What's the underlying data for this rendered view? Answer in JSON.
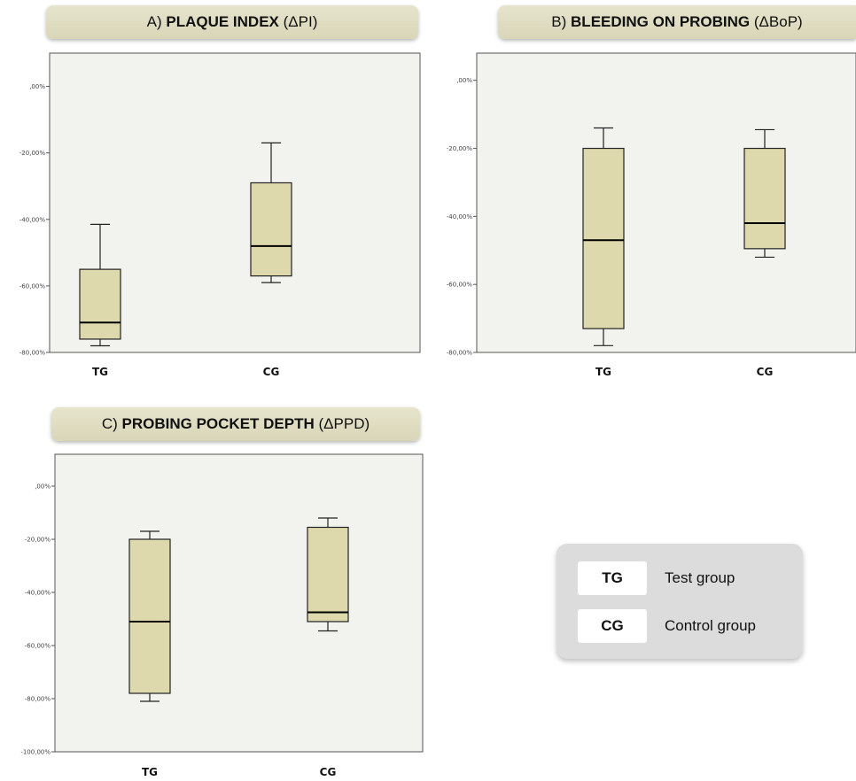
{
  "panels": [
    {
      "prefix": "A) ",
      "bold": "PLAQUE INDEX",
      "suffix": " (ΔPI)"
    },
    {
      "prefix": "B) ",
      "bold": "BLEEDING ON PROBING",
      "suffix": " (ΔBoP)"
    },
    {
      "prefix": "C) ",
      "bold": "PROBING POCKET DEPTH",
      "suffix": " (ΔPPD)"
    }
  ],
  "legend": [
    {
      "code": "TG",
      "label": "Test group"
    },
    {
      "code": "CG",
      "label": "Control group"
    }
  ],
  "colors": {
    "box_fill": "#ded9ad",
    "plot_bg": "#f2f2ee",
    "line": "#222222"
  },
  "chart_data": [
    {
      "type": "box",
      "title": "A) PLAQUE INDEX (ΔPI)",
      "categories": [
        "TG",
        "CG"
      ],
      "ylim": [
        -80,
        10
      ],
      "yticks": [
        0,
        -20,
        -40,
        -60,
        -80
      ],
      "ytick_labels": [
        ",00%",
        "-20,00%",
        "-40,00%",
        "-60,00%",
        "-80,00%"
      ],
      "boxes": [
        {
          "name": "TG",
          "whisker_low": -78,
          "q1": -76,
          "median": -71,
          "q3": -55,
          "whisker_high": -41.5
        },
        {
          "name": "CG",
          "whisker_low": -59,
          "q1": -57,
          "median": -48,
          "q3": -29,
          "whisker_high": -17
        }
      ]
    },
    {
      "type": "box",
      "title": "B) BLEEDING ON PROBING (ΔBoP)",
      "categories": [
        "TG",
        "CG"
      ],
      "ylim": [
        -80,
        8
      ],
      "yticks": [
        0,
        -20,
        -40,
        -60,
        -80
      ],
      "ytick_labels": [
        ",00%",
        "-20,00%",
        "-40,00%",
        "-60,00%",
        "-80,00%"
      ],
      "boxes": [
        {
          "name": "TG",
          "whisker_low": -78,
          "q1": -73,
          "median": -47,
          "q3": -20,
          "whisker_high": -14
        },
        {
          "name": "CG",
          "whisker_low": -52,
          "q1": -49.5,
          "median": -42,
          "q3": -20,
          "whisker_high": -14.5
        }
      ]
    },
    {
      "type": "box",
      "title": "C) PROBING POCKET DEPTH (ΔPPD)",
      "categories": [
        "TG",
        "CG"
      ],
      "ylim": [
        -100,
        12
      ],
      "yticks": [
        0,
        -20,
        -40,
        -60,
        -80,
        -100
      ],
      "ytick_labels": [
        ",00%",
        "-20,00%",
        "-40,00%",
        "-60,00%",
        "-80,00%",
        "-100,00%"
      ],
      "boxes": [
        {
          "name": "TG",
          "whisker_low": -81,
          "q1": -78,
          "median": -51,
          "q3": -20,
          "whisker_high": -17
        },
        {
          "name": "CG",
          "whisker_low": -54.5,
          "q1": -51,
          "median": -47.5,
          "q3": -15.5,
          "whisker_high": -12
        }
      ]
    }
  ]
}
